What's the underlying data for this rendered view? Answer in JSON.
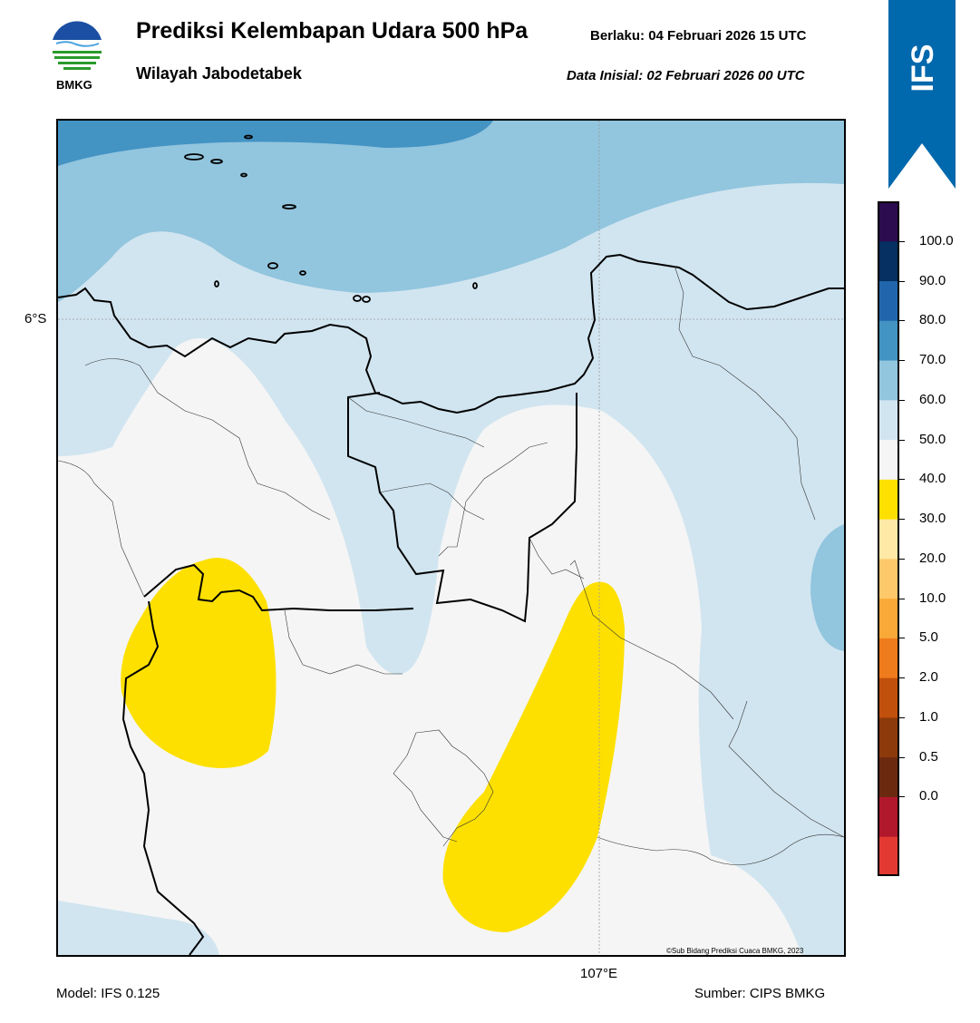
{
  "header": {
    "title": "Prediksi Kelembapan Udara 500 hPa",
    "subtitle": "Wilayah Jabodetabek",
    "valid_label": "Berlaku:  04 Februari 2026 15 UTC",
    "init_label": "Data Inisial:  02 Februari 2026 00 UTC"
  },
  "logo": {
    "text": "BMKG"
  },
  "banner": {
    "text": "IFS",
    "color": "#0068ac"
  },
  "map": {
    "lat_label": "6°S",
    "lon_label": "107°E",
    "copyright": "©Sub Bidang Prediksi Cuaca BMKG, 2023",
    "fill_colors": {
      "light_gray": "#f5f5f5",
      "pale_blue": "#d1e5f0",
      "light_blue": "#92c5de",
      "mid_blue": "#4393c3",
      "yellow": "#fde000"
    }
  },
  "footer": {
    "model": "Model: IFS 0.125",
    "source": "Sumber: CIPS BMKG"
  },
  "colorbar": {
    "labels": [
      "100.0",
      "90.0",
      "80.0",
      "70.0",
      "60.0",
      "50.0",
      "40.0",
      "30.0",
      "20.0",
      "10.0",
      "5.0",
      "2.0",
      "1.0",
      "0.5",
      "0.0"
    ],
    "colors": [
      "#e23a32",
      "#b2182b",
      "#6b2a10",
      "#8c3a0b",
      "#c1500c",
      "#ee7b1c",
      "#f9a938",
      "#fdc86a",
      "#fee9a6",
      "#fde000",
      "#f5f5f5",
      "#d1e5f0",
      "#92c5de",
      "#4393c3",
      "#2166ac",
      "#053061",
      "#2d0b4f"
    ]
  }
}
